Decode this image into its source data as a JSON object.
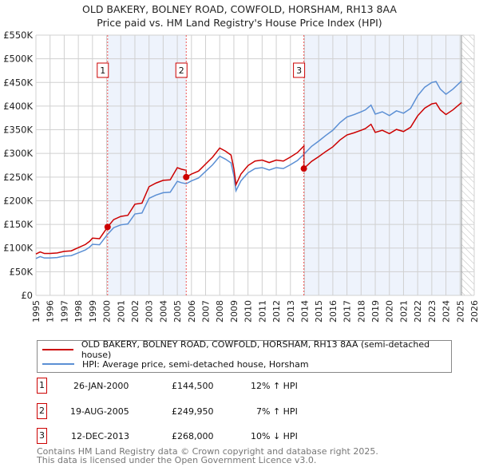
{
  "chart_data": {
    "type": "line",
    "title": "OLD BAKERY, BOLNEY ROAD, COWFOLD, HORSHAM, RH13 8AA",
    "subtitle": "Price paid vs. HM Land Registry's House Price Index (HPI)",
    "xlim": [
      1995,
      2026
    ],
    "ylim": [
      0,
      550000
    ],
    "x_ticks": [
      "1995",
      "1996",
      "1997",
      "1998",
      "1999",
      "2000",
      "2001",
      "2002",
      "2003",
      "2004",
      "2005",
      "2006",
      "2007",
      "2008",
      "2009",
      "2010",
      "2011",
      "2012",
      "2013",
      "2014",
      "2015",
      "2016",
      "2017",
      "2018",
      "2019",
      "2020",
      "2021",
      "2022",
      "2023",
      "2024",
      "2025",
      "2026"
    ],
    "y_ticks": [
      "£0",
      "£50K",
      "£100K",
      "£150K",
      "£200K",
      "£250K",
      "£300K",
      "£350K",
      "£400K",
      "£450K",
      "£500K",
      "£550K"
    ],
    "grid": true,
    "legend_placement": "below",
    "series": [
      {
        "name": "OLD BAKERY, BOLNEY ROAD, COWFOLD, HORSHAM, RH13 8AA (semi-detached house)",
        "color": "#cc0000",
        "derived_from": "hpi scaled to each sale"
      },
      {
        "name": "HPI: Average price, semi-detached house, Horsham",
        "color": "#5b8fd4",
        "x": [
          1995.0,
          1995.3,
          1995.6,
          1996.0,
          1996.5,
          1997.0,
          1997.5,
          1998.0,
          1998.5,
          1998.8,
          1999.0,
          1999.5,
          2000.07,
          2000.5,
          2001.0,
          2001.5,
          2002.0,
          2002.5,
          2003.0,
          2003.5,
          2004.0,
          2004.5,
          2005.0,
          2005.3,
          2005.63,
          2006.0,
          2006.5,
          2007.0,
          2007.5,
          2008.0,
          2008.4,
          2008.8,
          2009.0,
          2009.15,
          2009.5,
          2010.0,
          2010.5,
          2011.0,
          2011.5,
          2012.0,
          2012.5,
          2013.0,
          2013.5,
          2013.95,
          2014.5,
          2015.0,
          2015.5,
          2016.0,
          2016.5,
          2017.0,
          2017.5,
          2018.0,
          2018.3,
          2018.7,
          2019.0,
          2019.5,
          2020.0,
          2020.5,
          2021.0,
          2021.5,
          2022.0,
          2022.5,
          2023.0,
          2023.3,
          2023.6,
          2024.0,
          2024.5,
          2025.1
        ],
        "values": [
          78000,
          82000,
          79000,
          79000,
          80000,
          83000,
          84000,
          90000,
          96000,
          102000,
          108000,
          107000,
          129000,
          143000,
          149000,
          151000,
          172000,
          174000,
          205000,
          212000,
          217000,
          218000,
          241000,
          238000,
          236000,
          242000,
          248000,
          262000,
          276000,
          294000,
          288000,
          280000,
          253000,
          221000,
          242000,
          259000,
          268000,
          270000,
          265000,
          270000,
          268000,
          276000,
          285000,
          298000,
          315000,
          326000,
          338000,
          349000,
          365000,
          377000,
          382000,
          388000,
          392000,
          402000,
          383000,
          388000,
          380000,
          390000,
          385000,
          395000,
          422000,
          440000,
          450000,
          452000,
          436000,
          425000,
          436000,
          453000
        ]
      }
    ],
    "sales": [
      {
        "label": "1",
        "x": 2000.07,
        "date": "26-JAN-2000",
        "price": 144500,
        "price_text": "£144,500",
        "hpi_text": "12% ↑ HPI"
      },
      {
        "label": "2",
        "x": 2005.63,
        "date": "19-AUG-2005",
        "price": 249950,
        "price_text": "£249,950",
        "hpi_text": "7% ↑ HPI"
      },
      {
        "label": "3",
        "x": 2013.95,
        "date": "12-DEC-2013",
        "price": 268000,
        "price_text": "£268,000",
        "hpi_text": "10% ↓ HPI"
      }
    ],
    "forecast_start": 2025.1
  },
  "header": {
    "title": "OLD BAKERY, BOLNEY ROAD, COWFOLD, HORSHAM, RH13 8AA",
    "subtitle": "Price paid vs. HM Land Registry's House Price Index (HPI)"
  },
  "legend": {
    "red": "OLD BAKERY, BOLNEY ROAD, COWFOLD, HORSHAM, RH13 8AA (semi-detached house)",
    "blue": "HPI: Average price, semi-detached house, Horsham"
  },
  "footer": {
    "line1": "Contains HM Land Registry data © Crown copyright and database right 2025.",
    "line2": "This data is licensed under the Open Government Licence v3.0."
  }
}
